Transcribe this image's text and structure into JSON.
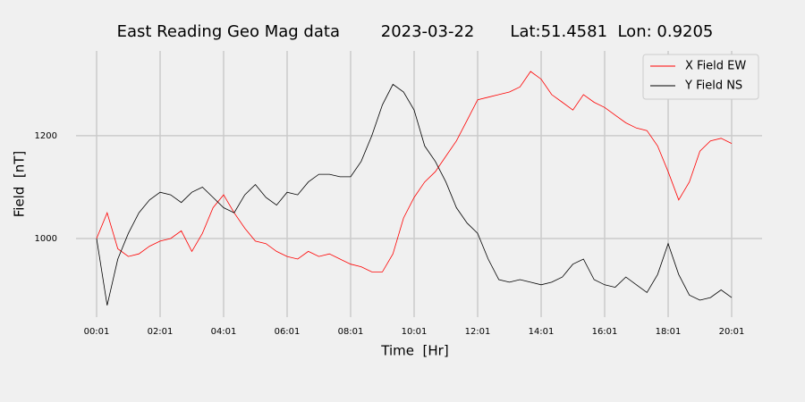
{
  "chart_data": {
    "type": "line",
    "title": "East Reading Geo Mag data        2023-03-22       Lat:51.4581  Lon: 0.9205",
    "xlabel": "Time  [Hr]",
    "ylabel": "Field  [nT]",
    "x": [
      "00:01",
      "00:21",
      "00:41",
      "01:01",
      "01:21",
      "01:41",
      "02:01",
      "02:21",
      "02:41",
      "03:01",
      "03:21",
      "03:41",
      "04:01",
      "04:21",
      "04:41",
      "05:01",
      "05:21",
      "05:41",
      "06:01",
      "06:21",
      "06:41",
      "07:01",
      "07:21",
      "07:41",
      "08:01",
      "08:21",
      "08:41",
      "09:01",
      "09:21",
      "09:41",
      "10:01",
      "10:21",
      "10:41",
      "11:01",
      "11:21",
      "11:41",
      "12:01",
      "12:21",
      "12:41",
      "13:01",
      "13:21",
      "13:41",
      "14:01",
      "14:21",
      "14:41",
      "15:01",
      "15:21",
      "15:41",
      "16:01",
      "16:21",
      "16:41",
      "17:01",
      "17:21",
      "17:41",
      "18:01",
      "18:21",
      "18:41",
      "19:01",
      "19:21",
      "19:41",
      "20:01"
    ],
    "series": [
      {
        "name": "X Field EW",
        "color": "#ff0000",
        "values": [
          1000,
          1050,
          980,
          965,
          970,
          985,
          995,
          1000,
          1015,
          975,
          1010,
          1060,
          1085,
          1050,
          1020,
          995,
          990,
          975,
          965,
          960,
          975,
          965,
          970,
          960,
          950,
          945,
          935,
          935,
          970,
          1040,
          1080,
          1110,
          1130,
          1160,
          1190,
          1230,
          1270,
          1275,
          1280,
          1285,
          1295,
          1325,
          1310,
          1280,
          1265,
          1250,
          1280,
          1265,
          1255,
          1240,
          1225,
          1215,
          1210,
          1180,
          1130,
          1075,
          1110,
          1170,
          1190,
          1195,
          1185
        ]
      },
      {
        "name": "Y Field NS",
        "color": "#000000",
        "values": [
          1000,
          870,
          960,
          1010,
          1050,
          1075,
          1090,
          1085,
          1070,
          1090,
          1100,
          1080,
          1060,
          1050,
          1085,
          1105,
          1080,
          1065,
          1090,
          1085,
          1110,
          1125,
          1125,
          1120,
          1120,
          1150,
          1200,
          1260,
          1300,
          1285,
          1250,
          1180,
          1150,
          1110,
          1060,
          1030,
          1010,
          960,
          920,
          915,
          920,
          915,
          910,
          915,
          925,
          950,
          960,
          920,
          910,
          905,
          925,
          910,
          895,
          930,
          990,
          930,
          890,
          880,
          885,
          900,
          885
        ]
      }
    ],
    "xticks": [
      "00:01",
      "02:01",
      "04:01",
      "06:01",
      "08:01",
      "10:01",
      "12:01",
      "14:01",
      "16:01",
      "18:01",
      "20:01"
    ],
    "ylim": [
      847,
      1365
    ],
    "yticks": [
      1000,
      1200
    ],
    "grid": true,
    "legend": "upper right"
  }
}
